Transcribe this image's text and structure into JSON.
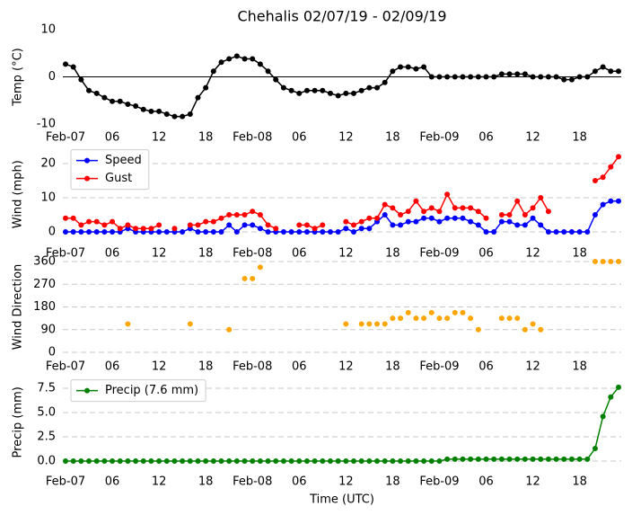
{
  "chart_data": [
    {
      "type": "line",
      "title": "Chehalis 02/07/19 - 02/09/19",
      "ylabel": "Temp (°C)",
      "x": [
        0,
        1,
        2,
        3,
        4,
        5,
        6,
        7,
        8,
        9,
        10,
        11,
        12,
        13,
        14,
        15,
        16,
        17,
        18,
        19,
        20,
        21,
        22,
        23,
        24,
        25,
        26,
        27,
        28,
        29,
        30,
        31,
        32,
        33,
        34,
        35,
        36,
        37,
        38,
        39,
        40,
        41,
        42,
        43,
        44,
        45,
        46,
        47,
        48,
        49,
        50,
        51,
        52,
        53,
        54,
        55,
        56,
        57,
        58,
        59,
        60,
        61,
        62,
        63,
        64,
        65,
        66,
        67,
        68,
        69,
        70,
        71
      ],
      "xlim": [
        0,
        71
      ],
      "xticks": [
        {
          "value": 0,
          "label": "Feb-07"
        },
        {
          "value": 6,
          "label": "06"
        },
        12,
        18,
        {
          "value": 24,
          "label": "Feb-08"
        },
        {
          "value": 30,
          "label": "06"
        },
        {
          "value": 36,
          "label": "12"
        },
        {
          "value": 42,
          "label": "18"
        },
        {
          "value": 48,
          "label": "Feb-09"
        },
        {
          "value": 54,
          "label": "06"
        },
        {
          "value": 60,
          "label": "12"
        },
        {
          "value": 66,
          "label": "18"
        }
      ],
      "ylim": [
        -10,
        10
      ],
      "yticks": [
        -10,
        0,
        10
      ],
      "grid": false,
      "zero_line": true,
      "markers": true,
      "series": [
        {
          "color": "#000000",
          "values": [
            2.7,
            2.1,
            -0.6,
            -2.9,
            -3.5,
            -4.4,
            -5.2,
            -5.2,
            -5.8,
            -6.2,
            -6.9,
            -7.3,
            -7.3,
            -7.9,
            -8.4,
            -8.4,
            -7.9,
            -4.4,
            -2.3,
            1.2,
            3.1,
            3.8,
            4.4,
            3.8,
            3.8,
            2.7,
            1.2,
            -0.6,
            -2.3,
            -2.9,
            -3.5,
            -2.9,
            -2.9,
            -2.9,
            -3.5,
            -4.0,
            -3.5,
            -3.5,
            -2.9,
            -2.3,
            -2.3,
            -1.2,
            1.2,
            2.1,
            2.1,
            1.7,
            2.1,
            0,
            0,
            0,
            0,
            0,
            0,
            0,
            0,
            0,
            0.6,
            0.6,
            0.6,
            0.6,
            0,
            0,
            0,
            0,
            -0.6,
            -0.6,
            0,
            0,
            1.2,
            2.1,
            1.2,
            1.2
          ]
        }
      ]
    },
    {
      "type": "line",
      "ylabel": "Wind (mph)",
      "x": [
        0,
        1,
        2,
        3,
        4,
        5,
        6,
        7,
        8,
        9,
        10,
        11,
        12,
        13,
        14,
        15,
        16,
        17,
        18,
        19,
        20,
        21,
        22,
        23,
        24,
        25,
        26,
        27,
        28,
        29,
        30,
        31,
        32,
        33,
        34,
        35,
        36,
        37,
        38,
        39,
        40,
        41,
        42,
        43,
        44,
        45,
        46,
        47,
        48,
        49,
        50,
        51,
        52,
        53,
        54,
        55,
        56,
        57,
        58,
        59,
        60,
        61,
        62,
        63,
        64,
        65,
        66,
        67,
        68,
        69,
        70,
        71
      ],
      "xlim": [
        0,
        71
      ],
      "xticks": [
        {
          "value": 0,
          "label": "Feb-07"
        },
        {
          "value": 6,
          "label": "06"
        },
        12,
        18,
        {
          "value": 24,
          "label": "Feb-08"
        },
        {
          "value": 30,
          "label": "06"
        },
        {
          "value": 36,
          "label": "12"
        },
        {
          "value": 42,
          "label": "18"
        },
        {
          "value": 48,
          "label": "Feb-09"
        },
        {
          "value": 54,
          "label": "06"
        },
        {
          "value": 60,
          "label": "12"
        },
        {
          "value": 66,
          "label": "18"
        }
      ],
      "ylim": [
        -1,
        23
      ],
      "yticks": [
        0,
        10,
        20
      ],
      "grid": true,
      "markers": true,
      "legend": "upper left",
      "series": [
        {
          "name": "Speed",
          "color": "#0000ff",
          "values": [
            0,
            0,
            0,
            0,
            0,
            0,
            0,
            0,
            1,
            0,
            0,
            0,
            0,
            0,
            0,
            0,
            1,
            0,
            0,
            0,
            0,
            2,
            0,
            2,
            2,
            1,
            0,
            0,
            0,
            0,
            0,
            0,
            0,
            0,
            0,
            0,
            1,
            0,
            1,
            1,
            3,
            5,
            2,
            2,
            3,
            3,
            4,
            4,
            3,
            4,
            4,
            4,
            3,
            2,
            0,
            0,
            3,
            3,
            2,
            2,
            4,
            2,
            0,
            0,
            0,
            0,
            0,
            0,
            5,
            8,
            9,
            9
          ]
        },
        {
          "name": "Gust",
          "color": "#ff0000",
          "values": [
            4,
            4,
            2,
            3,
            3,
            2,
            3,
            1,
            2,
            1,
            1,
            1,
            2,
            null,
            1,
            null,
            2,
            2,
            3,
            3,
            4,
            5,
            5,
            5,
            6,
            5,
            2,
            1,
            null,
            null,
            2,
            2,
            1,
            2,
            null,
            null,
            3,
            2,
            3,
            4,
            4,
            8,
            7,
            5,
            6,
            9,
            6,
            7,
            6,
            11,
            7,
            7,
            7,
            6,
            4,
            null,
            5,
            5,
            9,
            5,
            7,
            10,
            6,
            null,
            null,
            null,
            null,
            null,
            15,
            16,
            19,
            22
          ]
        }
      ]
    },
    {
      "type": "scatter",
      "ylabel": "Wind Direction",
      "x": [
        0,
        1,
        2,
        3,
        4,
        5,
        6,
        7,
        8,
        9,
        10,
        11,
        12,
        13,
        14,
        15,
        16,
        17,
        18,
        19,
        20,
        21,
        22,
        23,
        24,
        25,
        26,
        27,
        28,
        29,
        30,
        31,
        32,
        33,
        34,
        35,
        36,
        37,
        38,
        39,
        40,
        41,
        42,
        43,
        44,
        45,
        46,
        47,
        48,
        49,
        50,
        51,
        52,
        53,
        54,
        55,
        56,
        57,
        58,
        59,
        60,
        61,
        62,
        63,
        64,
        65,
        66,
        67,
        68,
        69,
        70,
        71
      ],
      "xlim": [
        0,
        71
      ],
      "xticks": [
        {
          "value": 0,
          "label": "Feb-07"
        },
        {
          "value": 6,
          "label": "06"
        },
        12,
        18,
        {
          "value": 24,
          "label": "Feb-08"
        },
        {
          "value": 30,
          "label": "06"
        },
        {
          "value": 36,
          "label": "12"
        },
        {
          "value": 42,
          "label": "18"
        },
        {
          "value": 48,
          "label": "Feb-09"
        },
        {
          "value": 54,
          "label": "06"
        },
        {
          "value": 60,
          "label": "12"
        },
        {
          "value": 66,
          "label": "18"
        }
      ],
      "ylim": [
        0,
        360
      ],
      "yticks": [
        0,
        90,
        180,
        270,
        360
      ],
      "grid": true,
      "markers": true,
      "series": [
        {
          "color": "#ffa500",
          "values": [
            null,
            null,
            null,
            null,
            null,
            null,
            null,
            null,
            112.5,
            null,
            null,
            null,
            null,
            null,
            null,
            null,
            112.5,
            null,
            null,
            null,
            null,
            90,
            null,
            292.5,
            292.5,
            337.5,
            null,
            null,
            null,
            null,
            null,
            null,
            null,
            null,
            null,
            null,
            112.5,
            null,
            112.5,
            112.5,
            112.5,
            112.5,
            135,
            135,
            157.5,
            135,
            135,
            157.5,
            135,
            135,
            157.5,
            157.5,
            135,
            90,
            null,
            null,
            135,
            135,
            135,
            90,
            112.5,
            90,
            null,
            null,
            null,
            null,
            null,
            null,
            360,
            360,
            360,
            360
          ]
        }
      ]
    },
    {
      "type": "line",
      "ylabel": "Precip (mm)",
      "xlabel": "Time (UTC)",
      "x": [
        0,
        1,
        2,
        3,
        4,
        5,
        6,
        7,
        8,
        9,
        10,
        11,
        12,
        13,
        14,
        15,
        16,
        17,
        18,
        19,
        20,
        21,
        22,
        23,
        24,
        25,
        26,
        27,
        28,
        29,
        30,
        31,
        32,
        33,
        34,
        35,
        36,
        37,
        38,
        39,
        40,
        41,
        42,
        43,
        44,
        45,
        46,
        47,
        48,
        49,
        50,
        51,
        52,
        53,
        54,
        55,
        56,
        57,
        58,
        59,
        60,
        61,
        62,
        63,
        64,
        65,
        66,
        67,
        68,
        69,
        70,
        71
      ],
      "xlim": [
        0,
        71
      ],
      "xticks": [
        {
          "value": 0,
          "label": "Feb-07"
        },
        {
          "value": 6,
          "label": "06"
        },
        12,
        18,
        {
          "value": 24,
          "label": "Feb-08"
        },
        {
          "value": 30,
          "label": "06"
        },
        {
          "value": 36,
          "label": "12"
        },
        {
          "value": 42,
          "label": "18"
        },
        {
          "value": 48,
          "label": "Feb-09"
        },
        {
          "value": 54,
          "label": "06"
        },
        {
          "value": 60,
          "label": "12"
        },
        {
          "value": 66,
          "label": "18"
        }
      ],
      "ylim": [
        0,
        8
      ],
      "yticks": [
        {
          "value": 0,
          "label": "0.0"
        },
        2.5,
        {
          "value": 5,
          "label": "5.0"
        },
        7.5
      ],
      "grid": true,
      "markers": true,
      "legend": "upper left",
      "series": [
        {
          "name": "Precip (7.6 mm)",
          "color": "#008000",
          "values": [
            0,
            0,
            0,
            0,
            0,
            0,
            0,
            0,
            0,
            0,
            0,
            0,
            0,
            0,
            0,
            0,
            0,
            0,
            0,
            0,
            0,
            0,
            0,
            0,
            0,
            0,
            0,
            0,
            0,
            0,
            0,
            0,
            0,
            0,
            0,
            0,
            0,
            0,
            0,
            0,
            0,
            0,
            0,
            0,
            0,
            0,
            0,
            0,
            0,
            0.2,
            0.2,
            0.2,
            0.2,
            0.2,
            0.2,
            0.2,
            0.2,
            0.2,
            0.2,
            0.2,
            0.2,
            0.2,
            0.2,
            0.2,
            0.2,
            0.2,
            0.2,
            0.2,
            1.3,
            4.6,
            6.6,
            7.6
          ]
        }
      ]
    }
  ]
}
